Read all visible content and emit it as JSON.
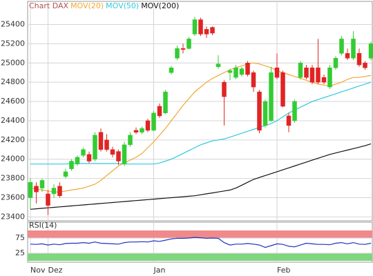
{
  "chart_data": [
    {
      "type": "candlestick",
      "title": "Chart DAX",
      "title_color": "#b05050",
      "categories": [
        "Nov",
        null,
        null,
        "Dez",
        null,
        null,
        null,
        null,
        null,
        null,
        null,
        null,
        null,
        null,
        null,
        null,
        null,
        null,
        null,
        null,
        null,
        "Jan",
        null,
        null,
        null,
        null,
        null,
        null,
        null,
        null,
        null,
        null,
        null,
        null,
        null,
        null,
        null,
        null,
        null,
        null,
        null,
        null,
        "Feb",
        null,
        null,
        null,
        null,
        null,
        null,
        null,
        null,
        null,
        null,
        null,
        null,
        null,
        null,
        null,
        null
      ],
      "open": [
        23600,
        23720,
        23700,
        23640,
        23640,
        23720,
        23820,
        23900,
        23950,
        24040,
        24050,
        24000,
        24280,
        24200,
        24100,
        24080,
        23950,
        24150,
        24300,
        24280,
        24400,
        24300,
        24550,
        24480,
        24900,
        25050,
        25150,
        25150,
        25300,
        25450,
        25350,
        25370,
        24960,
        24800,
        24900,
        24850,
        24880,
        25000,
        24900,
        24700,
        24350,
        24400,
        24950,
        24900,
        24450,
        24400,
        24850,
        24950,
        24950,
        24950,
        24850,
        24750,
        24950,
        25100,
        25100,
        25050,
        25100,
        25000,
        25050
      ],
      "high": [
        23800,
        23760,
        23800,
        23680,
        23740,
        23760,
        23900,
        24000,
        24040,
        24120,
        24080,
        24280,
        24320,
        24260,
        24130,
        24100,
        24180,
        24280,
        24330,
        24340,
        24420,
        24500,
        24580,
        24720,
        24970,
        25180,
        25200,
        25270,
        25480,
        25470,
        25380,
        25380,
        25080,
        24820,
        24940,
        24980,
        24960,
        25020,
        24920,
        24720,
        24620,
        24960,
        25100,
        24920,
        24480,
        24620,
        25020,
        24980,
        24980,
        25250,
        24880,
        24980,
        25070,
        25280,
        25150,
        25330,
        25150,
        25020,
        25220
      ],
      "low": [
        23480,
        23540,
        23660,
        23420,
        23600,
        23600,
        23800,
        23880,
        23930,
        24020,
        23960,
        23980,
        24080,
        24080,
        24020,
        23940,
        23930,
        24130,
        24260,
        24260,
        24280,
        24290,
        24430,
        24470,
        24880,
        25030,
        25100,
        25140,
        25280,
        25280,
        25260,
        25290,
        24940,
        24350,
        24820,
        24830,
        24860,
        24860,
        24700,
        24270,
        24330,
        24390,
        24830,
        24540,
        24280,
        24380,
        24830,
        24830,
        24780,
        24780,
        24780,
        24730,
        24930,
        25080,
        25030,
        25030,
        24960,
        24930,
        25030
      ],
      "close": [
        23760,
        23660,
        23780,
        23520,
        23700,
        23620,
        23870,
        23980,
        24020,
        24100,
        23980,
        24250,
        24100,
        24100,
        24050,
        23980,
        24150,
        24250,
        24280,
        24320,
        24300,
        24480,
        24450,
        24700,
        24950,
        25150,
        25140,
        25250,
        25450,
        25300,
        25300,
        25310,
        24990,
        24650,
        24920,
        24950,
        24940,
        24880,
        24750,
        24300,
        24600,
        24900,
        24850,
        24550,
        24350,
        24600,
        25000,
        24850,
        24800,
        24800,
        24800,
        24950,
        25050,
        25250,
        25050,
        25250,
        24980,
        24950,
        25200
      ],
      "up_color": "#33cc33",
      "down_color": "#e02424",
      "series": [
        {
          "name": "MOV(20)",
          "color": "#f0a830",
          "values": [
            23700,
            23690,
            23680,
            23670,
            23660,
            23660,
            23670,
            23680,
            23690,
            23700,
            23720,
            23740,
            23780,
            23830,
            23880,
            23930,
            23960,
            23990,
            24020,
            24060,
            24120,
            24180,
            24250,
            24320,
            24400,
            24480,
            24560,
            24630,
            24700,
            24750,
            24800,
            24840,
            24870,
            24900,
            24930,
            24950,
            24970,
            24990,
            25000,
            24990,
            24970,
            24950,
            24920,
            24900,
            24880,
            24860,
            24840,
            24820,
            24800,
            24780,
            24770,
            24760,
            24780,
            24800,
            24830,
            24850,
            24850,
            24860,
            24870
          ]
        },
        {
          "name": "MOV(50)",
          "color": "#30c8e0",
          "values": [
            23950,
            23950,
            23950,
            23950,
            23950,
            23950,
            23950,
            23955,
            23955,
            23955,
            23955,
            23955,
            23955,
            23955,
            23955,
            23955,
            23950,
            23950,
            23950,
            23950,
            23950,
            23950,
            23960,
            23980,
            24000,
            24030,
            24060,
            24090,
            24120,
            24150,
            24170,
            24190,
            24200,
            24210,
            24230,
            24250,
            24270,
            24290,
            24310,
            24330,
            24350,
            24370,
            24400,
            24440,
            24480,
            24510,
            24540,
            24570,
            24600,
            24620,
            24640,
            24660,
            24680,
            24700,
            24720,
            24740,
            24760,
            24780,
            24800
          ]
        },
        {
          "name": "MOV(200)",
          "color": "#111111",
          "values": [
            23480,
            23485,
            23490,
            23495,
            23500,
            23505,
            23510,
            23515,
            23520,
            23525,
            23530,
            23535,
            23540,
            23545,
            23550,
            23555,
            23560,
            23565,
            23570,
            23575,
            23580,
            23585,
            23590,
            23595,
            23600,
            23605,
            23610,
            23615,
            23620,
            23630,
            23640,
            23650,
            23660,
            23670,
            23680,
            23700,
            23730,
            23760,
            23790,
            23810,
            23830,
            23850,
            23870,
            23890,
            23910,
            23930,
            23950,
            23970,
            23990,
            24010,
            24030,
            24050,
            24065,
            24080,
            24095,
            24110,
            24125,
            24140,
            24160
          ]
        }
      ],
      "ylim": [
        23360,
        25640
      ],
      "yticks": [
        23400,
        23600,
        23800,
        24000,
        24200,
        24400,
        24600,
        24800,
        25000,
        25200,
        25400
      ],
      "grid": true
    },
    {
      "type": "line",
      "title": "RSI(14)",
      "series": [
        {
          "color": "#2030c0",
          "values": [
            55,
            54,
            56,
            52,
            55,
            53,
            57,
            58,
            58,
            60,
            58,
            62,
            58,
            57,
            56,
            55,
            60,
            62,
            62,
            63,
            62,
            66,
            64,
            68,
            72,
            74,
            74,
            75,
            77,
            76,
            74,
            75,
            74,
            60,
            52,
            55,
            55,
            57,
            55,
            52,
            44,
            50,
            56,
            54,
            48,
            46,
            52,
            58,
            56,
            54,
            54,
            53,
            58,
            60,
            56,
            60,
            55,
            54,
            58
          ]
        }
      ],
      "bands": [
        {
          "from": 75,
          "to": 100,
          "color": "#f08a8a"
        },
        {
          "from": 0,
          "to": 25,
          "color": "#7fd67f"
        }
      ],
      "ylim": [
        0,
        100
      ],
      "yticks": [
        25,
        75
      ],
      "grid": true
    }
  ]
}
